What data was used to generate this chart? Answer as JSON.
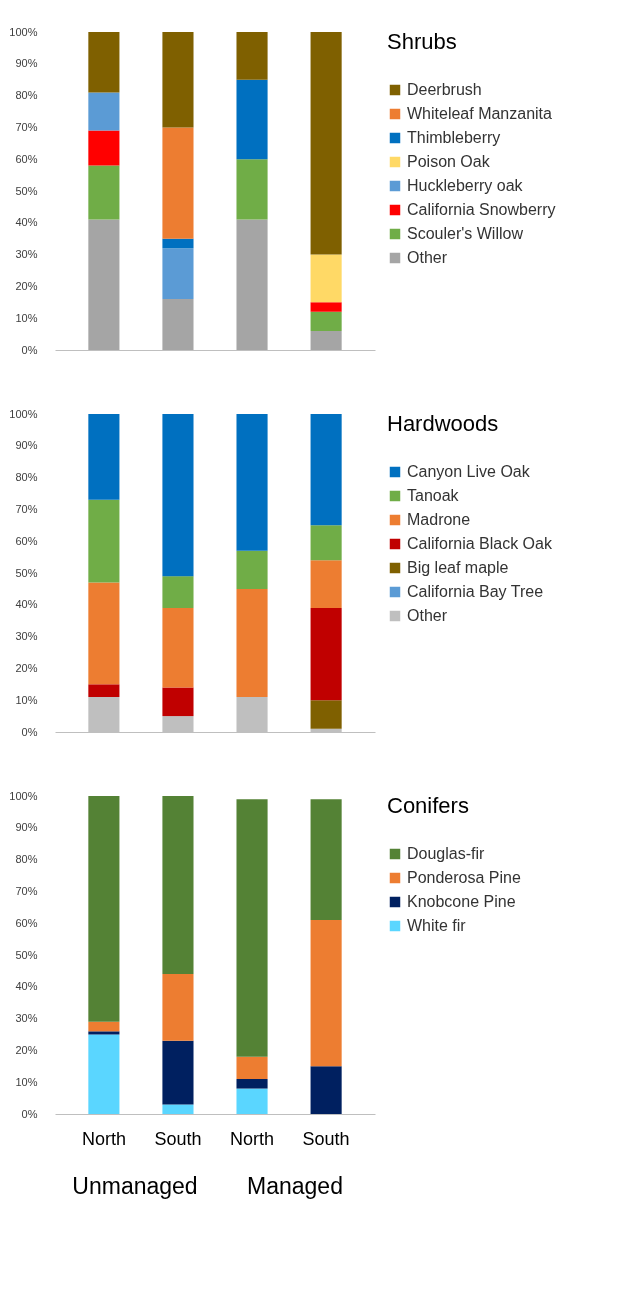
{
  "chart_data": [
    {
      "type": "bar",
      "stacked": true,
      "categories": [
        null,
        null,
        null,
        null
      ],
      "ylim": [
        0,
        100
      ],
      "yticks": [
        {
          "value": 0,
          "label": "0%"
        },
        {
          "value": 10,
          "label": "10%"
        },
        {
          "value": 20,
          "label": "20%"
        },
        {
          "value": 30,
          "label": "30%"
        },
        {
          "value": 40,
          "label": "40%"
        },
        {
          "value": 50,
          "label": "50%"
        },
        {
          "value": 60,
          "label": "60%"
        },
        {
          "value": 70,
          "label": "70%"
        },
        {
          "value": 80,
          "label": "80%"
        },
        {
          "value": 90,
          "label": "90%"
        },
        {
          "value": 100,
          "label": "100%"
        }
      ],
      "tick_labels": "y",
      "legend": "right",
      "legend_title": "Shrubs",
      "series": [
        {
          "name": "Other",
          "color": "#a5a5a5",
          "values": [
            41,
            16,
            41,
            6
          ]
        },
        {
          "name": "Scouler's Willow",
          "color": "#70ad47",
          "values": [
            17,
            null,
            19,
            6
          ]
        },
        {
          "name": "California Snowberry",
          "color": "#ff0000",
          "values": [
            11,
            null,
            null,
            3
          ]
        },
        {
          "name": "Huckleberry oak",
          "color": "#5b9bd5",
          "values": [
            12,
            16,
            null,
            null
          ]
        },
        {
          "name": "Poison Oak",
          "color": "#ffd966",
          "values": [
            null,
            null,
            null,
            15
          ]
        },
        {
          "name": "Thimbleberry",
          "color": "#0070c0",
          "values": [
            null,
            3,
            25,
            null
          ]
        },
        {
          "name": "Whiteleaf Manzanita",
          "color": "#ed7d31",
          "values": [
            null,
            35,
            null,
            null
          ]
        },
        {
          "name": "Deerbrush",
          "color": "#7f6000",
          "values": [
            19,
            30,
            15,
            70
          ]
        }
      ]
    },
    {
      "type": "bar",
      "stacked": true,
      "categories": [
        null,
        null,
        null,
        null
      ],
      "ylim": [
        0,
        100
      ],
      "yticks": [
        {
          "value": 0,
          "label": "0%"
        },
        {
          "value": 10,
          "label": "10%"
        },
        {
          "value": 20,
          "label": "20%"
        },
        {
          "value": 30,
          "label": "30%"
        },
        {
          "value": 40,
          "label": "40%"
        },
        {
          "value": 50,
          "label": "50%"
        },
        {
          "value": 60,
          "label": "60%"
        },
        {
          "value": 70,
          "label": "70%"
        },
        {
          "value": 80,
          "label": "80%"
        },
        {
          "value": 90,
          "label": "90%"
        },
        {
          "value": 100,
          "label": "100%"
        }
      ],
      "tick_labels": "y",
      "legend": "right",
      "legend_title": "Hardwoods",
      "series": [
        {
          "name": "Other",
          "color": "#bfbfbf",
          "values": [
            11,
            5,
            11,
            1
          ]
        },
        {
          "name": "California Bay Tree",
          "color": "#5b9bd5",
          "values": [
            null,
            null,
            null,
            null
          ]
        },
        {
          "name": "Big leaf maple",
          "color": "#7f6000",
          "values": [
            null,
            null,
            null,
            9
          ]
        },
        {
          "name": "California Black Oak",
          "color": "#c00000",
          "values": [
            4,
            9,
            null,
            29
          ]
        },
        {
          "name": "Madrone",
          "color": "#ed7d31",
          "values": [
            32,
            25,
            34,
            15
          ]
        },
        {
          "name": "Tanoak",
          "color": "#70ad47",
          "values": [
            26,
            10,
            12,
            11
          ]
        },
        {
          "name": "Canyon Live Oak",
          "color": "#0070c0",
          "values": [
            27,
            51,
            43,
            35
          ]
        }
      ]
    },
    {
      "type": "bar",
      "stacked": true,
      "categories": [
        "North",
        "South",
        "North",
        "South"
      ],
      "ylim": [
        0,
        100
      ],
      "yticks": [
        {
          "value": 0,
          "label": "0%"
        },
        {
          "value": 10,
          "label": "10%"
        },
        {
          "value": 20,
          "label": "20%"
        },
        {
          "value": 30,
          "label": "30%"
        },
        {
          "value": 40,
          "label": "40%"
        },
        {
          "value": 50,
          "label": "50%"
        },
        {
          "value": 60,
          "label": "60%"
        },
        {
          "value": 70,
          "label": "70%"
        },
        {
          "value": 80,
          "label": "80%"
        },
        {
          "value": 90,
          "label": "90%"
        },
        {
          "value": 100,
          "label": "100%"
        }
      ],
      "legend": "right",
      "legend_title": "Conifers",
      "annotations": [
        "Unmanaged",
        "Managed"
      ],
      "series": [
        {
          "name": "White fir",
          "color": "#5ad6ff",
          "values": [
            25,
            3,
            8,
            null
          ]
        },
        {
          "name": "Knobcone Pine",
          "color": "#002060",
          "values": [
            1,
            20,
            3,
            15
          ]
        },
        {
          "name": "Ponderosa Pine",
          "color": "#ed7d31",
          "values": [
            3,
            21,
            7,
            46
          ]
        },
        {
          "name": "Douglas-fir",
          "color": "#548235",
          "values": [
            71,
            56,
            81,
            38
          ]
        }
      ]
    }
  ]
}
